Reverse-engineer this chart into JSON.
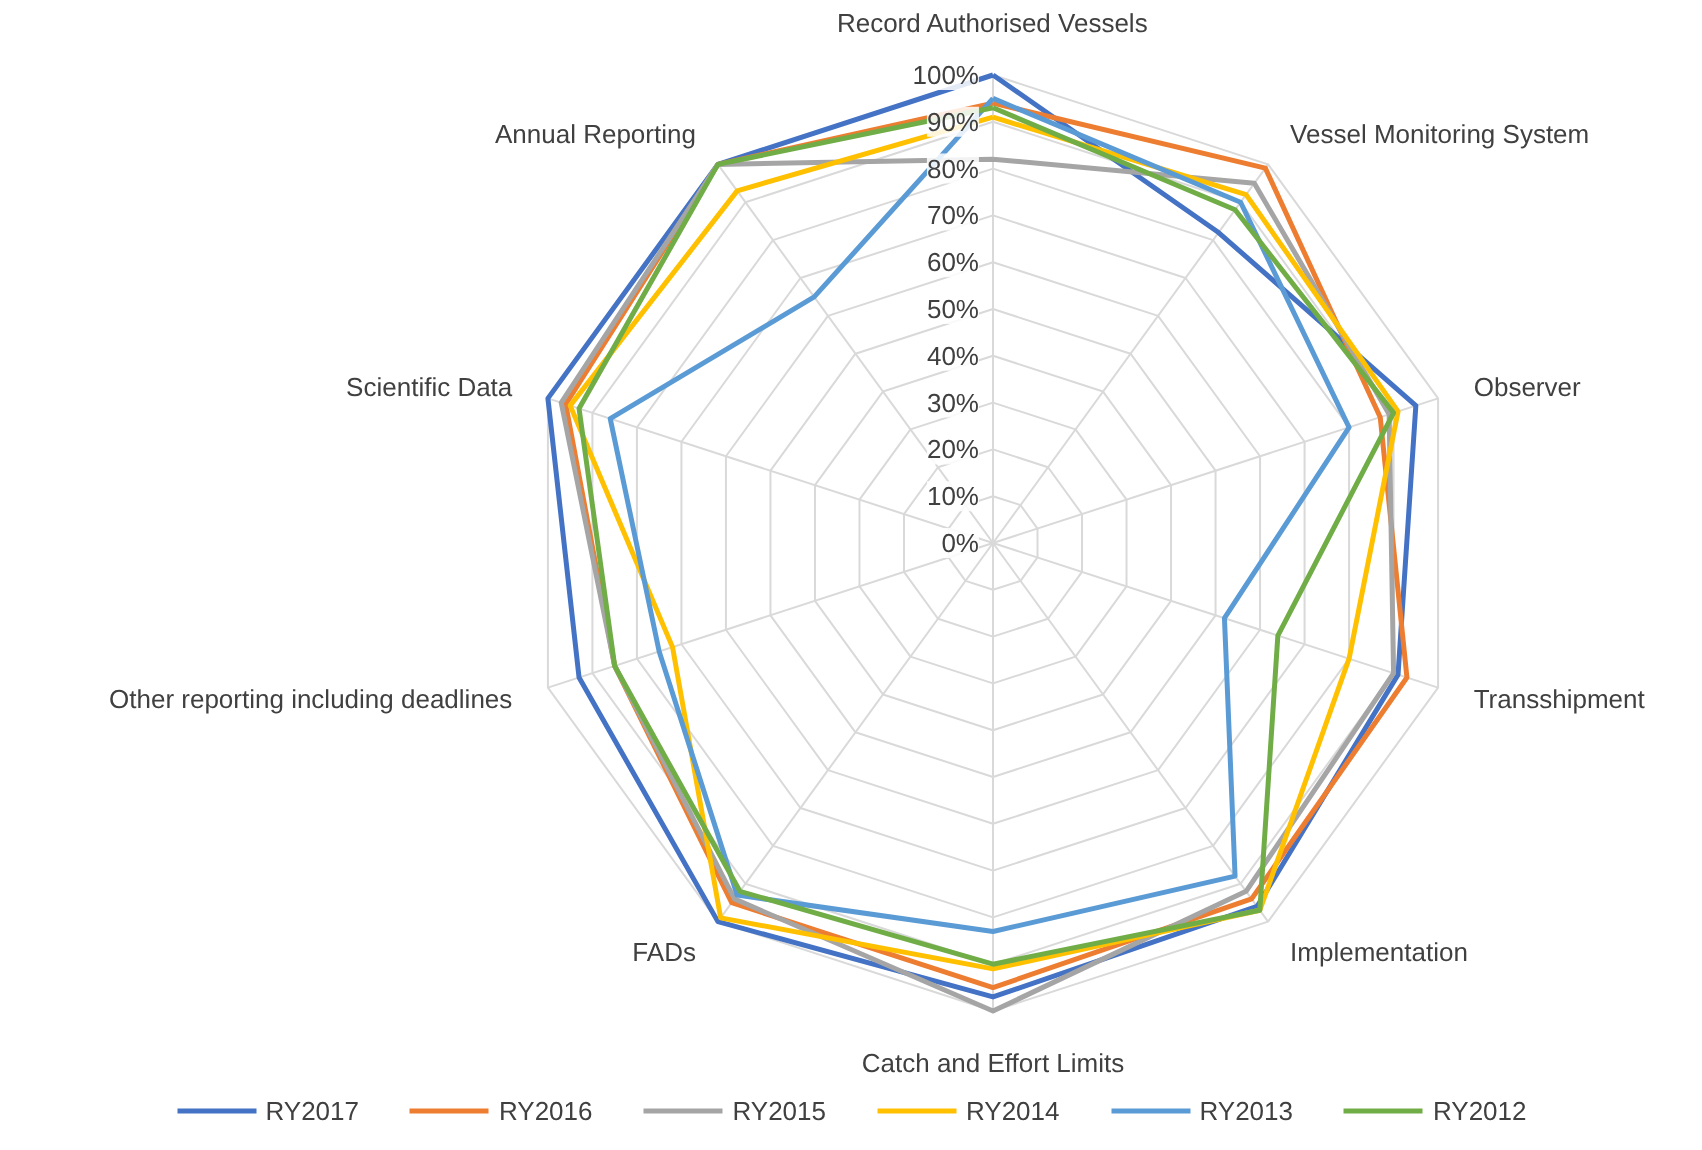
{
  "chart_data": {
    "type": "radar",
    "categories": [
      "Record Authorised Vessels",
      "Vessel Monitoring System",
      "Observer",
      "Transshipment",
      "Implementation",
      "Catch and Effort Limits",
      "FADs",
      "Other reporting including deadlines",
      "Scientific Data",
      "Annual Reporting"
    ],
    "ylim": [
      0,
      100
    ],
    "yticks": [
      {
        "value": 0,
        "label": "0%"
      },
      {
        "value": 10,
        "label": "10%"
      },
      {
        "value": 20,
        "label": "20%"
      },
      {
        "value": 30,
        "label": "30%"
      },
      {
        "value": 40,
        "label": "40%"
      },
      {
        "value": 50,
        "label": "50%"
      },
      {
        "value": 60,
        "label": "60%"
      },
      {
        "value": 70,
        "label": "70%"
      },
      {
        "value": 80,
        "label": "80%"
      },
      {
        "value": 90,
        "label": "90%"
      },
      {
        "value": 100,
        "label": "100%"
      }
    ],
    "grid": true,
    "legend": "bottom",
    "series": [
      {
        "name": "RY2017",
        "color": "#4472c4",
        "values": [
          100,
          82,
          95,
          91,
          96,
          97,
          100,
          93,
          100,
          100
        ]
      },
      {
        "name": "RY2016",
        "color": "#ed7d31",
        "values": [
          94,
          99,
          87,
          93,
          94,
          95,
          95,
          85,
          96,
          100
        ]
      },
      {
        "name": "RY2015",
        "color": "#a5a5a5",
        "values": [
          82,
          95,
          89,
          90,
          92,
          100,
          94,
          85,
          97,
          100
        ]
      },
      {
        "name": "RY2014",
        "color": "#ffc000",
        "values": [
          91,
          92,
          91,
          80,
          97,
          91,
          99,
          72,
          95,
          93
        ]
      },
      {
        "name": "RY2013",
        "color": "#5b9bd5",
        "values": [
          95,
          90,
          80,
          52,
          88,
          83,
          93,
          75,
          86,
          65
        ]
      },
      {
        "name": "RY2012",
        "color": "#70ad47",
        "values": [
          93,
          88,
          90,
          64,
          97,
          90,
          92,
          85,
          93,
          100
        ]
      }
    ]
  }
}
